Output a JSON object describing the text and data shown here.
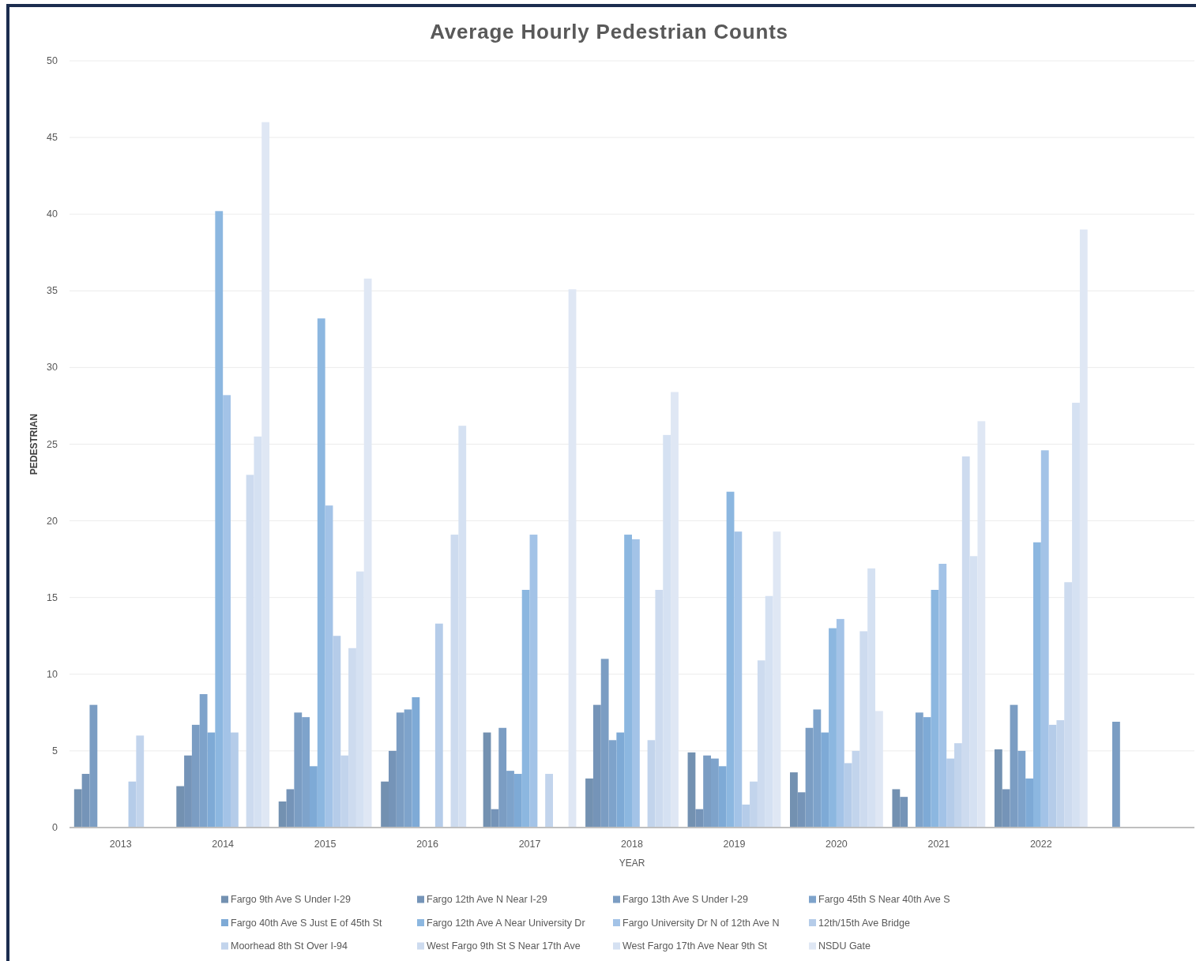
{
  "chart_data": {
    "type": "bar",
    "title": "Average Hourly Pedestrian Counts",
    "xlabel": "YEAR",
    "ylabel": "PEDESTRIAN",
    "categories": [
      "2013",
      "2014",
      "2015",
      "2016",
      "2017",
      "2018",
      "2019",
      "2020",
      "2021",
      "2022",
      null
    ],
    "series": [
      {
        "name": "Fargo 9th Ave S Under I-29",
        "color": "#7391b1",
        "values": [
          2.5,
          2.7,
          1.7,
          3.0,
          6.2,
          3.2,
          4.9,
          3.6,
          2.5,
          5.1,
          null
        ]
      },
      {
        "name": "Fargo 12th Ave N Near I-29",
        "color": "#7594b8",
        "values": [
          3.5,
          4.7,
          2.5,
          5.0,
          1.2,
          8.0,
          1.2,
          2.3,
          2.0,
          2.5,
          null
        ]
      },
      {
        "name": "Fargo 13th Ave S Under I-29",
        "color": "#7b9dc3",
        "values": [
          8.0,
          6.7,
          7.5,
          7.5,
          6.5,
          11.0,
          4.7,
          6.5,
          null,
          8.0,
          6.9
        ]
      },
      {
        "name": "Fargo 45th S Near 40th Ave S",
        "color": "#7ea3cb",
        "values": [
          null,
          8.7,
          7.2,
          7.7,
          3.7,
          5.7,
          4.5,
          7.7,
          7.5,
          5.0,
          null
        ]
      },
      {
        "name": "Fargo 40th Ave S Just E of 45th St",
        "color": "#7eaad6",
        "values": [
          null,
          6.2,
          4.0,
          8.5,
          3.5,
          6.2,
          4.0,
          6.2,
          7.2,
          3.2,
          null
        ]
      },
      {
        "name": "Fargo 12th Ave A Near University Dr",
        "color": "#8cb7e0",
        "values": [
          null,
          40.2,
          33.2,
          null,
          15.5,
          19.1,
          21.9,
          13.0,
          15.5,
          18.6,
          null
        ]
      },
      {
        "name": "Fargo University Dr N of 12th Ave N",
        "color": "#a3c3e7",
        "values": [
          null,
          28.2,
          21.0,
          null,
          19.1,
          18.8,
          19.3,
          13.6,
          17.2,
          24.6,
          null
        ]
      },
      {
        "name": "12th/15th Ave Bridge",
        "color": "#b5cce9",
        "values": [
          3.0,
          6.2,
          12.5,
          13.3,
          null,
          null,
          1.5,
          4.2,
          4.5,
          6.7,
          null
        ]
      },
      {
        "name": "Moorhead 8th St Over I-94",
        "color": "#c2d4ec",
        "values": [
          6.0,
          null,
          4.7,
          null,
          3.5,
          5.7,
          3.0,
          5.0,
          5.5,
          7.0,
          null
        ]
      },
      {
        "name": "West Fargo 9th St S Near 17th Ave",
        "color": "#cddbef",
        "values": [
          null,
          23.0,
          11.7,
          19.1,
          null,
          15.5,
          10.9,
          12.8,
          24.2,
          16.0,
          null
        ]
      },
      {
        "name": "West Fargo 17th Ave Near 9th St",
        "color": "#d5e1f2",
        "values": [
          null,
          25.5,
          16.7,
          26.2,
          null,
          25.6,
          15.1,
          16.9,
          17.7,
          27.7,
          null
        ]
      },
      {
        "name": "NSDU Gate",
        "color": "#dfe7f4",
        "values": [
          null,
          46.0,
          35.8,
          null,
          35.1,
          28.4,
          19.3,
          7.6,
          26.5,
          39.0,
          null
        ]
      }
    ],
    "ylim": [
      0,
      50
    ],
    "yticks": [
      0,
      5,
      10,
      15,
      20,
      25,
      30,
      35,
      40,
      45,
      50
    ],
    "grid": "y",
    "legend": "bottom"
  }
}
